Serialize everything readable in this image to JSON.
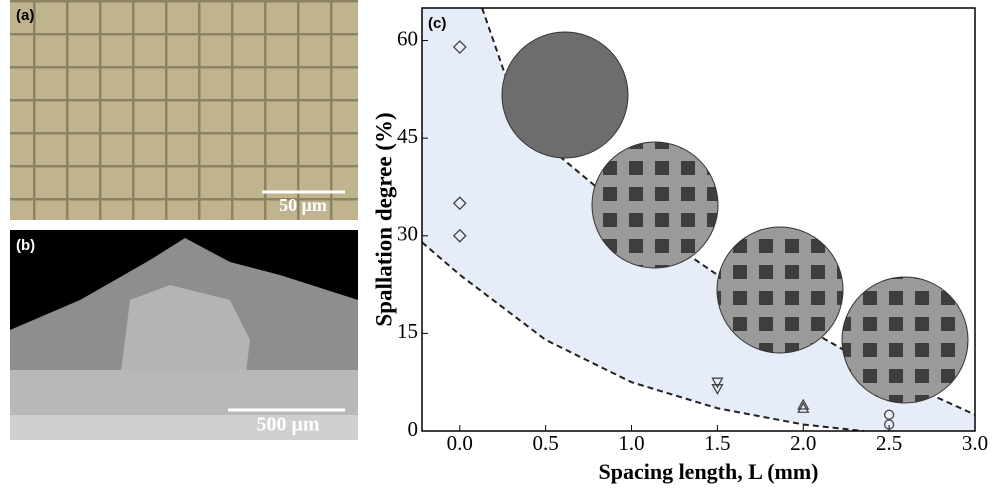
{
  "panels": {
    "a": "(a)",
    "b": "(b)",
    "scale_a": "50 μm",
    "scale_b": "500 μm"
  },
  "chart_data": {
    "type": "scatter",
    "panel_label": "(c)",
    "xlabel": "Spacing length, L (mm)",
    "ylabel": "Spallation degree (%)",
    "xlim": [
      -0.22,
      3.0
    ],
    "ylim": [
      0,
      65
    ],
    "xticks": [
      {
        "value": 0,
        "label": "0.0"
      },
      {
        "value": 0.5,
        "label": "0.5"
      },
      {
        "value": 1,
        "label": "1.0"
      },
      {
        "value": 1.5,
        "label": "1.5"
      },
      {
        "value": 2,
        "label": "2.0"
      },
      {
        "value": 2.5,
        "label": "2.5"
      },
      {
        "value": 3,
        "label": "3.0"
      }
    ],
    "yticks": [
      0,
      15,
      30,
      45,
      60
    ],
    "color": "#444444",
    "band_color": "#e6edf8",
    "series": [
      {
        "marker": "diamond",
        "x": [
          0,
          0,
          0
        ],
        "values": [
          59,
          35,
          30
        ]
      },
      {
        "marker": "triangle-down",
        "x": [
          1.5,
          1.5
        ],
        "values": [
          7.5,
          6.5
        ]
      },
      {
        "marker": "triangle-up",
        "x": [
          2,
          2
        ],
        "values": [
          4,
          3.5
        ]
      },
      {
        "marker": "circle",
        "x": [
          2.5,
          2.5
        ],
        "values": [
          2.5,
          1
        ]
      }
    ],
    "bounds": [
      {
        "x": [
          0.13,
          0.3,
          0.5,
          1.0,
          1.5,
          2.0,
          2.5,
          3.0
        ],
        "values": [
          65,
          52,
          44,
          33,
          24,
          16,
          8.5,
          2.5
        ]
      },
      {
        "x": [
          -0.22,
          0,
          0.5,
          1.0,
          1.5,
          2.0,
          2.35
        ],
        "values": [
          29,
          24,
          14,
          7.5,
          3.5,
          1,
          0
        ]
      }
    ]
  }
}
